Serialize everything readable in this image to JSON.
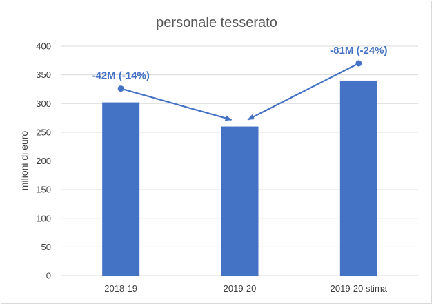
{
  "chart_data": {
    "type": "bar",
    "title": "personale tesserato",
    "xlabel": "",
    "ylabel": "milioni di euro",
    "categories": [
      "2018-19",
      "2019-20",
      "2019-20 stima"
    ],
    "values": [
      302,
      260,
      340
    ],
    "ylim": [
      0,
      400
    ],
    "yticks": [
      0,
      50,
      100,
      150,
      200,
      250,
      300,
      350,
      400
    ],
    "grid": true,
    "legend": "none",
    "bar_color": "#4472c4",
    "grid_color": "#d9d9d9",
    "annotations": [
      {
        "text": "-42M (-14%)",
        "color": "#4472c4",
        "arrow_from": {
          "category": "2018-19",
          "value": 326
        },
        "arrow_to": {
          "category": "2019-20",
          "value": 271
        }
      },
      {
        "text": "-81M (-24%)",
        "color": "#4472c4",
        "arrow_from": {
          "category": "2019-20 stima",
          "value": 370
        },
        "arrow_to": {
          "category": "2019-20",
          "value": 271
        }
      }
    ]
  }
}
